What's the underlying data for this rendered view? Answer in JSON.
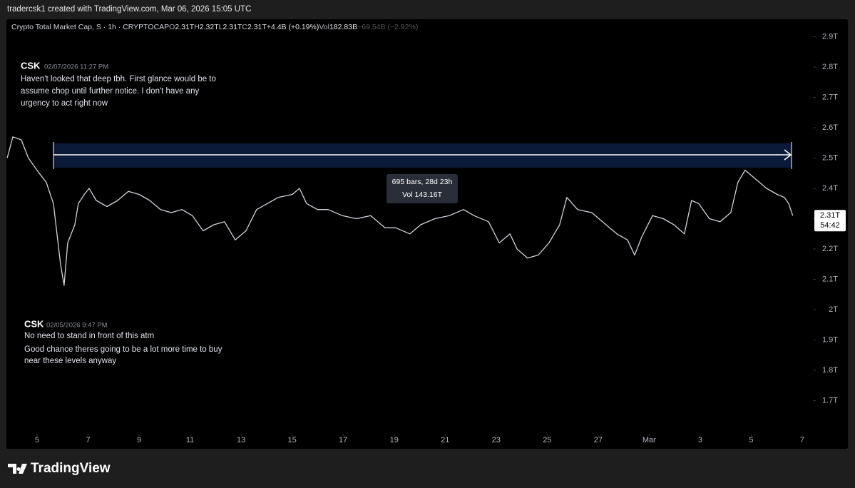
{
  "banner": "tradercsk1 created with TradingView.com, Mar 06, 2026 15:05 UTC",
  "brand": "TradingView",
  "chart_data": {
    "type": "line",
    "title": "Crypto Total Market Cap, S · 1h · CRYPTOCAP",
    "stats": [
      {
        "key": "O",
        "text": "2.31T"
      },
      {
        "key": "H",
        "text": "2.32T"
      },
      {
        "key": "L",
        "text": "2.31T"
      },
      {
        "key": "C",
        "text": "2.31T"
      },
      {
        "key": "",
        "text": "+4.4B (+0.19%)"
      },
      {
        "key": "Vol",
        "text": "182.83B"
      },
      {
        "key": "",
        "text": "−69.54B (−2.92%)"
      }
    ],
    "x": [
      3.83,
      4.05,
      4.38,
      4.66,
      5.08,
      5.36,
      5.64,
      5.78,
      5.92,
      6.06,
      6.2,
      6.34,
      6.48,
      6.62,
      6.85,
      7.04,
      7.32,
      7.74,
      8.16,
      8.58,
      9.0,
      9.42,
      9.84,
      10.26,
      10.68,
      11.09,
      11.51,
      11.93,
      12.35,
      12.77,
      13.19,
      13.61,
      14.03,
      14.45,
      15.01,
      15.29,
      15.57,
      15.99,
      16.41,
      16.97,
      17.52,
      18.08,
      18.64,
      19.06,
      19.62,
      20.04,
      20.6,
      21.16,
      21.72,
      22.14,
      22.7,
      23.12,
      23.54,
      23.82,
      24.23,
      24.65,
      25.07,
      25.49,
      25.77,
      26.19,
      26.75,
      27.31,
      27.73,
      28.15,
      28.43,
      28.71,
      29.13,
      29.55,
      29.97,
      30.38,
      30.66,
      30.94,
      31.36,
      31.78,
      32.2,
      32.48,
      32.76,
      33.18,
      33.6,
      34.02,
      34.3,
      34.47,
      34.63
    ],
    "series": [
      {
        "name": "Crypto Total Market Cap",
        "color": "#d1d4dc",
        "values": [
          2.5,
          2.57,
          2.56,
          2.5,
          2.45,
          2.42,
          2.35,
          2.25,
          2.15,
          2.08,
          2.22,
          2.25,
          2.28,
          2.35,
          2.38,
          2.4,
          2.36,
          2.34,
          2.36,
          2.39,
          2.38,
          2.36,
          2.33,
          2.32,
          2.33,
          2.31,
          2.26,
          2.28,
          2.29,
          2.23,
          2.26,
          2.33,
          2.35,
          2.37,
          2.38,
          2.4,
          2.35,
          2.33,
          2.33,
          2.31,
          2.3,
          2.31,
          2.27,
          2.27,
          2.25,
          2.28,
          2.3,
          2.31,
          2.33,
          2.31,
          2.29,
          2.22,
          2.25,
          2.2,
          2.17,
          2.18,
          2.22,
          2.28,
          2.37,
          2.33,
          2.32,
          2.28,
          2.25,
          2.23,
          2.18,
          2.24,
          2.31,
          2.3,
          2.28,
          2.25,
          2.36,
          2.35,
          2.3,
          2.29,
          2.32,
          2.42,
          2.46,
          2.43,
          2.4,
          2.38,
          2.37,
          2.35,
          2.31
        ]
      }
    ],
    "xlim": [
      3.77,
      35.42
    ],
    "xticks": [
      5,
      7,
      9,
      11,
      13,
      15,
      17,
      19,
      21,
      23,
      25,
      27,
      {
        "value": 29,
        "label": "Mar"
      },
      {
        "value": 31,
        "label": "3"
      },
      {
        "value": 33,
        "label": "5"
      },
      {
        "value": 35,
        "label": "7"
      }
    ],
    "ylim": [
      1.6,
      2.96
    ],
    "yticks": [
      {
        "value": 1.7,
        "label": "1.7T"
      },
      {
        "value": 1.8,
        "label": "1.8T"
      },
      {
        "value": 1.9,
        "label": "1.9T"
      },
      {
        "value": 2,
        "label": "2T"
      },
      {
        "value": 2.1,
        "label": "2.1T"
      },
      {
        "value": 2.2,
        "label": "2.2T"
      },
      {
        "value": 2.3,
        "label": "2.3T"
      },
      {
        "value": 2.4,
        "label": "2.4T"
      },
      {
        "value": 2.5,
        "label": "2.5T"
      },
      {
        "value": 2.6,
        "label": "2.6T"
      },
      {
        "value": 2.7,
        "label": "2.7T"
      },
      {
        "value": 2.8,
        "label": "2.8T"
      },
      {
        "value": 2.9,
        "label": "2.9T"
      }
    ],
    "last_price": {
      "value": 2.31,
      "label": "2.31T",
      "countdown": "54:42"
    },
    "measure": {
      "line1": "695 bars, 28d 23h",
      "line2": "Vol 143.16T"
    },
    "notes": [
      {
        "author": "CSK",
        "date": "02/07/2026 11:27 PM",
        "lines": [
          "Haven't looked that deep tbh. First glance would be to",
          "assume chop until further notice. I don't have any",
          "urgency to act right now"
        ]
      },
      {
        "author": "CSK",
        "date": "02/05/2026 9:47 PM",
        "lines": [
          "No need to stand in front of this atm",
          "Good chance theres going to be a lot more time to buy",
          "near these levels anyway"
        ]
      }
    ]
  }
}
